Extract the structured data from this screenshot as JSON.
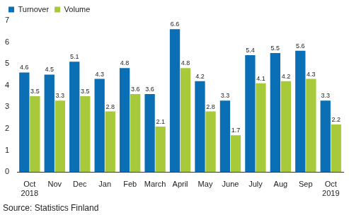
{
  "chart_data": {
    "type": "bar",
    "categories": [
      "Oct\n2018",
      "Nov",
      "Dec",
      "Jan",
      "Feb",
      "March",
      "April",
      "May",
      "June",
      "July",
      "Aug",
      "Sep",
      "Oct\n2019"
    ],
    "series": [
      {
        "name": "Turnover",
        "color": "#0a6fb4",
        "values": [
          4.6,
          4.5,
          5.1,
          4.3,
          4.8,
          3.6,
          6.6,
          4.2,
          3.3,
          5.4,
          5.5,
          5.6,
          3.3
        ]
      },
      {
        "name": "Volume",
        "color": "#a8c93a",
        "values": [
          3.5,
          3.3,
          3.5,
          2.8,
          3.6,
          2.1,
          4.8,
          2.8,
          1.7,
          4.1,
          4.2,
          4.3,
          2.2
        ]
      }
    ],
    "ylim": [
      0,
      7
    ],
    "yticks": [
      0,
      1,
      2,
      3,
      4,
      5,
      6,
      7
    ],
    "grid": false,
    "legend": "top-left",
    "data_labels": true,
    "source": "Source: Statistics Finland"
  }
}
